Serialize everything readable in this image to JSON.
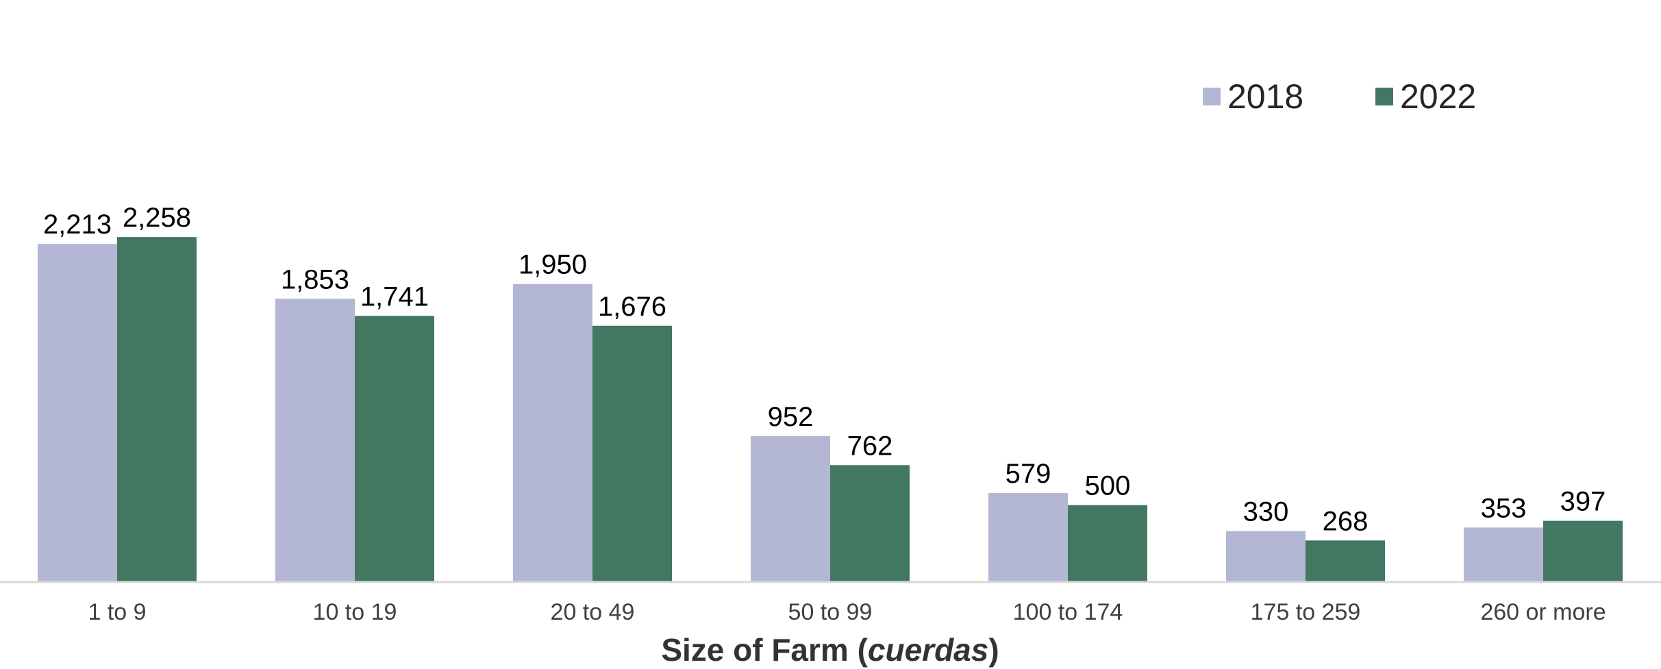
{
  "chart_data": {
    "type": "bar",
    "categories": [
      "1 to 9",
      "10 to 19",
      "20 to 49",
      "50 to 99",
      "100 to 174",
      "175 to 259",
      "260 or more"
    ],
    "series": [
      {
        "name": "2018",
        "color": "#B3B7D3",
        "values": [
          2213,
          1853,
          1950,
          952,
          579,
          330,
          353
        ],
        "labels": [
          "2,213",
          "1,853",
          "1,950",
          "952",
          "579",
          "330",
          "353"
        ]
      },
      {
        "name": "2022",
        "color": "#427762",
        "values": [
          2258,
          1741,
          1676,
          762,
          500,
          268,
          397
        ],
        "labels": [
          "2,258",
          "1,741",
          "1,676",
          "762",
          "500",
          "268",
          "397"
        ]
      }
    ],
    "xlabel_parts": [
      {
        "text": "Size of Farm (",
        "italic": false
      },
      {
        "text": "cuerdas",
        "italic": true
      },
      {
        "text": ")",
        "italic": false
      }
    ],
    "ylim": [
      0,
      2300
    ],
    "grid": false,
    "legend_position": "top-right",
    "axis_color": "#D9D9D9"
  }
}
